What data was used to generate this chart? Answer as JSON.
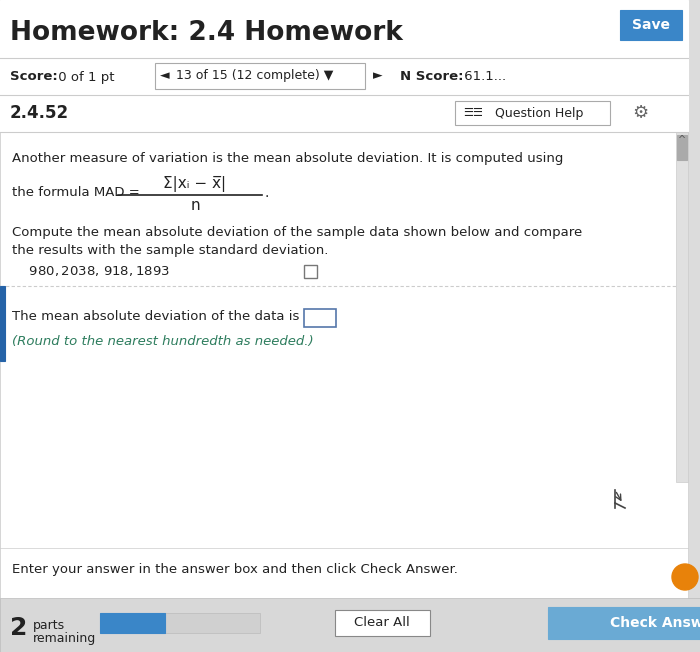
{
  "title": "Homework: 2.4 Homework",
  "save_btn": "Save",
  "score_bold": "Score:",
  "score_rest": " 0 of 1 pt",
  "nav_text": "13 of 15 (12 complete) ▼",
  "nscore_bold": "N Score:",
  "nscore_rest": " 61.1...",
  "section_num": "2.4.52",
  "question_help": "Question Help",
  "para1": "Another measure of variation is the mean absolute deviation. It is computed using",
  "formula_label": "the formula MAD = ",
  "formula_numerator": "Σ|xᵢ − x̅|",
  "formula_denominator": "n",
  "para2a": "Compute the mean absolute deviation of the sample data shown below and compare",
  "para2b": "the results with the sample standard deviation.",
  "data_line": "    $980, $2038, $918, $1893",
  "answer_line1": "The mean absolute deviation of the data is $",
  "answer_line2": "(Round to the nearest hundredth as needed.)",
  "bottom_text": "Enter your answer in the answer box and then click Check Answer.",
  "parts_label": "2",
  "clear_all": "Clear All",
  "check_answer": "Check Answer",
  "bg_color": "#dcdcdc",
  "white": "#ffffff",
  "save_btn_color": "#3a86c8",
  "check_btn_color": "#6aaad4",
  "teal_text": "#2e7d5e",
  "dark_text": "#222222",
  "gray_text": "#666666",
  "border_color": "#cccccc",
  "progress_color": "#3a86c8",
  "accent_blue": "#2563a8",
  "light_bg": "#f4f4f4",
  "score_border": "#cccccc",
  "nav_box_border": "#aaaaaa"
}
